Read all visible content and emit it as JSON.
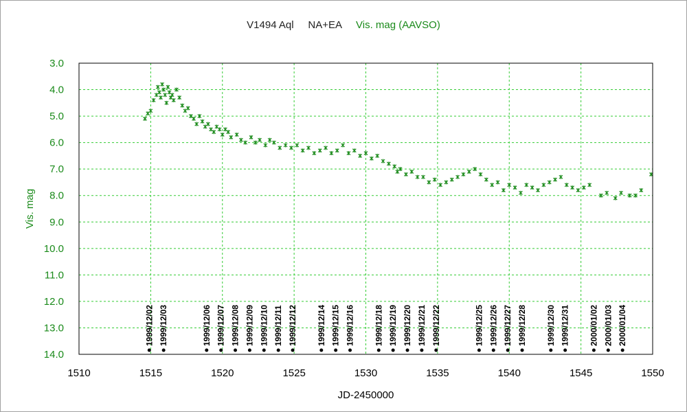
{
  "chart_data": {
    "type": "scatter",
    "title": "V1494 Aql",
    "subtitle": "NA+EA",
    "series_label": "Vis. mag (AAVSO)",
    "xlabel": "JD-2450000",
    "ylabel": "Vis. mag",
    "xlim": [
      1510,
      1550
    ],
    "ylim": [
      3.0,
      14.0
    ],
    "y_inverted": true,
    "grid": true,
    "colors": {
      "series": "#1a8a1a",
      "grid": "#33cc33",
      "markers": "#000000"
    },
    "x_ticks": [
      1510,
      1515,
      1520,
      1525,
      1530,
      1535,
      1540,
      1545,
      1550
    ],
    "y_ticks": [
      "3.0",
      "4.0",
      "5.0",
      "6.0",
      "7.0",
      "8.0",
      "9.0",
      "10.0",
      "11.0",
      "12.0",
      "13.0",
      "14.0"
    ],
    "series": [
      {
        "name": "Vis. mag (AAVSO)",
        "x": [
          1514.6,
          1514.8,
          1515.0,
          1515.2,
          1515.4,
          1515.5,
          1515.6,
          1515.7,
          1515.8,
          1515.9,
          1516.0,
          1516.1,
          1516.2,
          1516.3,
          1516.4,
          1516.5,
          1516.6,
          1516.8,
          1517.0,
          1517.2,
          1517.4,
          1517.6,
          1517.8,
          1518.0,
          1518.2,
          1518.4,
          1518.6,
          1518.8,
          1519.0,
          1519.2,
          1519.4,
          1519.6,
          1519.8,
          1520.0,
          1520.2,
          1520.4,
          1520.6,
          1521.0,
          1521.3,
          1521.6,
          1522.0,
          1522.3,
          1522.6,
          1523.0,
          1523.3,
          1523.6,
          1524.0,
          1524.4,
          1524.8,
          1525.2,
          1525.6,
          1526.0,
          1526.4,
          1526.8,
          1527.2,
          1527.6,
          1528.0,
          1528.4,
          1528.8,
          1529.2,
          1529.6,
          1530.0,
          1530.4,
          1530.8,
          1531.2,
          1531.6,
          1532.0,
          1532.2,
          1532.4,
          1532.8,
          1533.2,
          1533.6,
          1534.0,
          1534.4,
          1534.8,
          1535.2,
          1535.6,
          1536.0,
          1536.4,
          1536.8,
          1537.2,
          1537.6,
          1538.0,
          1538.4,
          1538.8,
          1539.2,
          1539.6,
          1540.0,
          1540.4,
          1540.8,
          1541.2,
          1541.6,
          1542.0,
          1542.4,
          1542.8,
          1543.2,
          1543.6,
          1544.0,
          1544.4,
          1544.8,
          1545.2,
          1545.6,
          1546.4,
          1546.8,
          1547.4,
          1547.8,
          1548.4,
          1548.8,
          1549.2,
          1549.9
        ],
        "y": [
          5.1,
          4.9,
          4.8,
          4.4,
          4.2,
          3.9,
          4.1,
          4.3,
          3.8,
          4.0,
          4.2,
          4.5,
          3.9,
          4.1,
          4.3,
          4.2,
          4.4,
          4.0,
          4.3,
          4.6,
          4.8,
          4.7,
          5.0,
          5.1,
          5.3,
          5.0,
          5.2,
          5.4,
          5.3,
          5.5,
          5.6,
          5.4,
          5.5,
          5.7,
          5.5,
          5.6,
          5.8,
          5.7,
          5.9,
          6.0,
          5.8,
          6.0,
          5.9,
          6.1,
          5.9,
          6.0,
          6.2,
          6.1,
          6.2,
          6.1,
          6.3,
          6.2,
          6.4,
          6.3,
          6.2,
          6.4,
          6.3,
          6.1,
          6.4,
          6.3,
          6.5,
          6.4,
          6.6,
          6.5,
          6.7,
          6.8,
          6.9,
          7.1,
          7.0,
          7.2,
          7.1,
          7.3,
          7.3,
          7.5,
          7.4,
          7.6,
          7.5,
          7.4,
          7.3,
          7.2,
          7.1,
          7.0,
          7.2,
          7.4,
          7.6,
          7.5,
          7.8,
          7.6,
          7.7,
          7.9,
          7.6,
          7.7,
          7.8,
          7.6,
          7.5,
          7.4,
          7.3,
          7.6,
          7.7,
          7.8,
          7.7,
          7.6,
          8.0,
          7.9,
          8.1,
          7.9,
          8.0,
          8.0,
          7.8,
          7.2
        ]
      }
    ],
    "date_markers": [
      {
        "x": 1514.9,
        "label": "1999/12/02"
      },
      {
        "x": 1515.9,
        "label": "1999/12/03"
      },
      {
        "x": 1518.9,
        "label": "1999/12/06"
      },
      {
        "x": 1519.9,
        "label": "1999/12/07"
      },
      {
        "x": 1520.9,
        "label": "1999/12/08"
      },
      {
        "x": 1521.9,
        "label": "1999/12/09"
      },
      {
        "x": 1522.9,
        "label": "1999/12/10"
      },
      {
        "x": 1523.9,
        "label": "1999/12/11"
      },
      {
        "x": 1524.9,
        "label": "1999/12/12"
      },
      {
        "x": 1526.9,
        "label": "1999/12/14"
      },
      {
        "x": 1527.9,
        "label": "1999/12/15"
      },
      {
        "x": 1528.9,
        "label": "1999/12/16"
      },
      {
        "x": 1530.9,
        "label": "1999/12/18"
      },
      {
        "x": 1531.9,
        "label": "1999/12/19"
      },
      {
        "x": 1532.9,
        "label": "1999/12/20"
      },
      {
        "x": 1533.9,
        "label": "1999/12/21"
      },
      {
        "x": 1534.9,
        "label": "1999/12/22"
      },
      {
        "x": 1537.9,
        "label": "1999/12/25"
      },
      {
        "x": 1538.9,
        "label": "1999/12/26"
      },
      {
        "x": 1539.9,
        "label": "1999/12/27"
      },
      {
        "x": 1540.9,
        "label": "1999/12/28"
      },
      {
        "x": 1542.9,
        "label": "1999/12/30"
      },
      {
        "x": 1543.9,
        "label": "1999/12/31"
      },
      {
        "x": 1545.9,
        "label": "2000/01/02"
      },
      {
        "x": 1546.9,
        "label": "2000/01/03"
      },
      {
        "x": 1547.9,
        "label": "2000/01/04"
      }
    ]
  }
}
